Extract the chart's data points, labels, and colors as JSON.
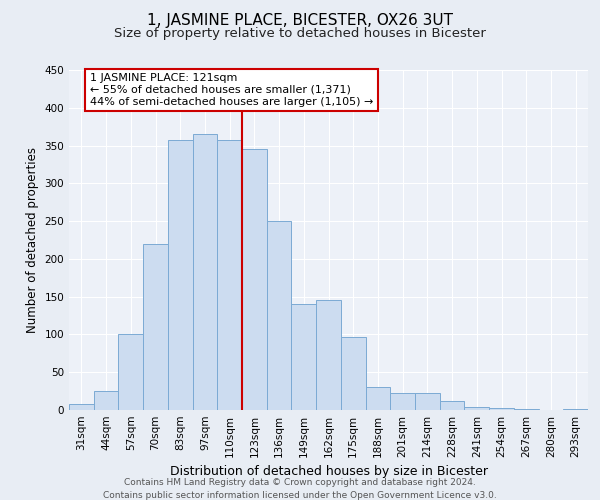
{
  "title": "1, JASMINE PLACE, BICESTER, OX26 3UT",
  "subtitle": "Size of property relative to detached houses in Bicester",
  "xlabel": "Distribution of detached houses by size in Bicester",
  "ylabel": "Number of detached properties",
  "bar_labels": [
    "31sqm",
    "44sqm",
    "57sqm",
    "70sqm",
    "83sqm",
    "97sqm",
    "110sqm",
    "123sqm",
    "136sqm",
    "149sqm",
    "162sqm",
    "175sqm",
    "188sqm",
    "201sqm",
    "214sqm",
    "228sqm",
    "241sqm",
    "254sqm",
    "267sqm",
    "280sqm",
    "293sqm"
  ],
  "bar_values": [
    8,
    25,
    100,
    220,
    358,
    365,
    358,
    345,
    250,
    140,
    145,
    97,
    30,
    22,
    22,
    12,
    4,
    2,
    1,
    0,
    1
  ],
  "bar_color": "#ccdcf0",
  "bar_edge_color": "#7baad4",
  "vline_color": "#cc0000",
  "annotation_line1": "1 JASMINE PLACE: 121sqm",
  "annotation_line2": "← 55% of detached houses are smaller (1,371)",
  "annotation_line3": "44% of semi-detached houses are larger (1,105) →",
  "annotation_box_color": "#ffffff",
  "annotation_box_edge": "#cc0000",
  "ylim": [
    0,
    450
  ],
  "yticks": [
    0,
    50,
    100,
    150,
    200,
    250,
    300,
    350,
    400,
    450
  ],
  "footer_line1": "Contains HM Land Registry data © Crown copyright and database right 2024.",
  "footer_line2": "Contains public sector information licensed under the Open Government Licence v3.0.",
  "bg_color": "#e8edf4",
  "plot_bg_color": "#edf1f8",
  "grid_color": "#ffffff",
  "title_fontsize": 11,
  "subtitle_fontsize": 9.5,
  "axis_label_fontsize": 9,
  "tick_fontsize": 7.5,
  "footer_fontsize": 6.5,
  "annotation_fontsize": 8,
  "ylabel_fontsize": 8.5
}
